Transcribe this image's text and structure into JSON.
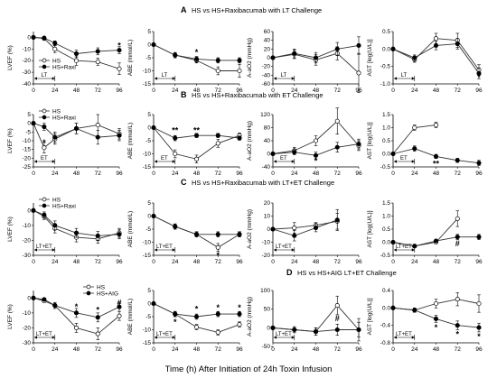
{
  "figure": {
    "xlabel": "Time (h) After Initiation of 24h Toxin Infusion",
    "x_ticks": [
      "0",
      "24",
      "48",
      "72",
      "96"
    ],
    "colors": {
      "hs": "#ffffff",
      "treat": "#000000",
      "line": "#333333"
    }
  },
  "panels": [
    {
      "letter": "A",
      "title": "HS vs HS+Raxibacumab with LT Challenge"
    },
    {
      "letter": "B",
      "title": "HS vs HS+Raxibacumab with ET Challenge"
    },
    {
      "letter": "C",
      "title": "HS vs HS+Raxibacumab with LT+ET Challenge"
    },
    {
      "letter": "D",
      "title": "HS vs HS+AIG LT+ET Challenge"
    }
  ],
  "chart_data": [
    {
      "type": "line",
      "row": 0,
      "col": 0,
      "ylabel": "LVEF (%)",
      "ylim": [
        -40,
        5
      ],
      "yticks": [
        0,
        -10,
        -20,
        -30,
        -40
      ],
      "x": [
        0,
        12,
        24,
        48,
        72,
        96
      ],
      "window": "LT",
      "legend": {
        "placement": "bottom-left",
        "hs": "HS",
        "treat": "HS+Raxi"
      },
      "series": [
        {
          "name": "HS",
          "kind": "hs",
          "values": [
            0,
            -1,
            -10,
            -20,
            -21,
            -27
          ],
          "err": [
            0,
            1,
            3,
            4,
            3,
            5
          ]
        },
        {
          "name": "HS+Raxi",
          "kind": "treat",
          "values": [
            0,
            -0.5,
            -5,
            -14,
            -12,
            -11
          ],
          "err": [
            0,
            1,
            2,
            3,
            3,
            3
          ]
        }
      ],
      "sig": [
        {
          "x": 96,
          "y": -7,
          "text": "*"
        }
      ]
    },
    {
      "type": "line",
      "row": 0,
      "col": 1,
      "ylabel": "ABE (mmol/L)",
      "ylim": [
        -15,
        5
      ],
      "yticks": [
        5,
        0,
        -5,
        -10,
        -15
      ],
      "x": [
        0,
        24,
        48,
        72,
        96
      ],
      "window": "LT",
      "series": [
        {
          "name": "HS",
          "kind": "hs",
          "values": [
            0,
            -4,
            -6,
            -10,
            -10
          ],
          "err": [
            0,
            1,
            1,
            1.5,
            2.5
          ]
        },
        {
          "name": "HS+Raxi",
          "kind": "treat",
          "values": [
            0,
            -4,
            -5.5,
            -6,
            -6
          ],
          "err": [
            0,
            1,
            1,
            1,
            1
          ]
        }
      ],
      "sig": [
        {
          "x": 48,
          "y": -3,
          "text": "*"
        }
      ]
    },
    {
      "type": "line",
      "row": 0,
      "col": 2,
      "ylabel": "A-aO2 (mmHg)",
      "ylim": [
        -60,
        60
      ],
      "yticks": [
        60,
        40,
        20,
        0,
        -20,
        -40,
        -60
      ],
      "x": [
        0,
        24,
        48,
        72,
        96
      ],
      "window": "LT",
      "series": [
        {
          "name": "HS",
          "kind": "hs",
          "values": [
            0,
            8,
            -5,
            10,
            -35
          ],
          "err": [
            0,
            10,
            12,
            15,
            45
          ]
        },
        {
          "name": "HS+Raxi",
          "kind": "treat",
          "values": [
            0,
            10,
            0,
            20,
            28
          ],
          "err": [
            0,
            10,
            12,
            15,
            20
          ]
        }
      ],
      "sig": []
    },
    {
      "type": "line",
      "row": 0,
      "col": 3,
      "ylabel": "AST [log(U/L)]",
      "ylim": [
        -1,
        0.5
      ],
      "yticks": [
        0.5,
        0,
        -0.5,
        -1
      ],
      "ytick_labels": [
        "0.5",
        "0.0",
        "-0.5",
        "-1.0"
      ],
      "x": [
        0,
        24,
        48,
        72,
        96
      ],
      "window": "LT",
      "series": [
        {
          "name": "HS",
          "kind": "hs",
          "values": [
            0,
            -0.3,
            0.3,
            0.25,
            -0.6
          ],
          "err": [
            0,
            0.08,
            0.15,
            0.2,
            0.15
          ]
        },
        {
          "name": "HS+Raxi",
          "kind": "treat",
          "values": [
            0,
            -0.25,
            0.1,
            0.15,
            -0.7
          ],
          "err": [
            0,
            0.08,
            0.12,
            0.15,
            0.15
          ]
        }
      ],
      "sig": [
        {
          "x": 96,
          "y": -0.8,
          "text": "*"
        }
      ]
    },
    {
      "type": "line",
      "row": 1,
      "col": 0,
      "ylabel": "LVEF (%)",
      "ylim": [
        -25,
        5
      ],
      "yticks": [
        5,
        0,
        -5,
        -10,
        -15,
        -20,
        -25
      ],
      "x": [
        0,
        12,
        24,
        48,
        72,
        96
      ],
      "window": "ET",
      "legend": {
        "placement": "top-left",
        "hs": "HS",
        "treat": "HS+Raxi"
      },
      "series": [
        {
          "name": "HS",
          "kind": "hs",
          "values": [
            0,
            -14,
            -9,
            -3,
            -1,
            -6
          ],
          "err": [
            0,
            3,
            3,
            3,
            6,
            3
          ]
        },
        {
          "name": "HS+Raxi",
          "kind": "treat",
          "values": [
            0,
            -2,
            -8,
            -3,
            -8,
            -7
          ],
          "err": [
            0,
            2,
            3,
            3,
            4,
            3
          ]
        }
      ],
      "sig": [
        {
          "x": 12,
          "y": -11,
          "text": "*"
        }
      ]
    },
    {
      "type": "line",
      "row": 1,
      "col": 1,
      "ylabel": "ABE (mmol/L)",
      "ylim": [
        -15,
        5
      ],
      "yticks": [
        5,
        0,
        -5,
        -10,
        -15
      ],
      "x": [
        0,
        24,
        48,
        72,
        96
      ],
      "window": "ET",
      "series": [
        {
          "name": "HS",
          "kind": "hs",
          "values": [
            0,
            -10,
            -12,
            -6,
            -3
          ],
          "err": [
            0,
            1.5,
            1.5,
            1.5,
            1
          ]
        },
        {
          "name": "HS+Raxi",
          "kind": "treat",
          "values": [
            0,
            -4,
            -3,
            -3,
            -4
          ],
          "err": [
            0,
            1,
            0.8,
            0.8,
            0.8
          ]
        }
      ],
      "sig": [
        {
          "x": 24,
          "y": -1,
          "text": "**"
        },
        {
          "x": 48,
          "y": -1,
          "text": "**"
        }
      ]
    },
    {
      "type": "line",
      "row": 1,
      "col": 2,
      "ylabel": "A-aO2 (mmHg)",
      "ylim": [
        -40,
        120
      ],
      "yticks": [
        120,
        80,
        40,
        0,
        -40
      ],
      "x": [
        0,
        24,
        48,
        72,
        96
      ],
      "window": "ET",
      "series": [
        {
          "name": "HS",
          "kind": "hs",
          "values": [
            0,
            10,
            40,
            100,
            25
          ],
          "err": [
            0,
            10,
            15,
            40,
            15
          ]
        },
        {
          "name": "HS+Raxi",
          "kind": "treat",
          "values": [
            0,
            5,
            -5,
            20,
            30
          ],
          "err": [
            0,
            8,
            10,
            15,
            15
          ]
        }
      ],
      "sig": [
        {
          "x": 48,
          "y": -22,
          "text": "*"
        }
      ]
    },
    {
      "type": "line",
      "row": 1,
      "col": 3,
      "ylabel": "AST [log(U/L)]",
      "ylim": [
        -0.5,
        1.5
      ],
      "yticks": [
        1.5,
        1,
        0.5,
        0,
        -0.5
      ],
      "ytick_labels": [
        "1.5",
        "1.0",
        "0.5",
        "0.0",
        "-0.5"
      ],
      "x": [
        0,
        24,
        48,
        72,
        96
      ],
      "window": "ET",
      "series": [
        {
          "name": "HS",
          "kind": "hs",
          "values": [
            0,
            1,
            1.1,
            null,
            null
          ],
          "err": [
            0,
            0.1,
            0.1,
            null,
            null
          ]
        },
        {
          "name": "HS+Raxi",
          "kind": "treat",
          "values": [
            0,
            0.2,
            -0.1,
            -0.25,
            -0.35
          ],
          "err": [
            0,
            0.1,
            0.08,
            0.08,
            0.1
          ]
        }
      ],
      "sig": [
        {
          "x": 48,
          "y": -0.38,
          "text": "**"
        }
      ]
    },
    {
      "type": "line",
      "row": 2,
      "col": 0,
      "ylabel": "LVEF (%)",
      "ylim": [
        -30,
        5
      ],
      "yticks": [
        0,
        -10,
        -20,
        -30
      ],
      "x": [
        0,
        12,
        24,
        48,
        72,
        96
      ],
      "window": "LT+ET",
      "legend": {
        "placement": "top-left",
        "hs": "HS",
        "treat": "HS+Raxi"
      },
      "series": [
        {
          "name": "HS",
          "kind": "hs",
          "values": [
            0,
            -4,
            -12,
            -18,
            -19,
            -15
          ],
          "err": [
            0,
            2,
            3,
            3,
            3,
            3
          ]
        },
        {
          "name": "HS+Raxi",
          "kind": "treat",
          "values": [
            0,
            -3,
            -10,
            -15,
            -17,
            -16
          ],
          "err": [
            0,
            2,
            3,
            3,
            3,
            3
          ]
        }
      ],
      "sig": []
    },
    {
      "type": "line",
      "row": 2,
      "col": 1,
      "ylabel": "ABE (mmol/L)",
      "ylim": [
        -15,
        5
      ],
      "yticks": [
        5,
        0,
        -5,
        -10,
        -15
      ],
      "x": [
        0,
        24,
        48,
        72,
        96
      ],
      "window": "LT+ET",
      "series": [
        {
          "name": "HS",
          "kind": "hs",
          "values": [
            0,
            -4,
            -7,
            -12,
            -7
          ],
          "err": [
            0,
            1,
            1,
            1.5,
            1
          ]
        },
        {
          "name": "HS+Raxi",
          "kind": "treat",
          "values": [
            0,
            -4,
            -7,
            -7,
            -7
          ],
          "err": [
            0,
            1,
            1,
            1,
            1
          ]
        }
      ],
      "sig": [
        {
          "x": 72,
          "y": -15,
          "text": "*"
        }
      ]
    },
    {
      "type": "line",
      "row": 2,
      "col": 2,
      "ylabel": "A-aO2 (mmHg)",
      "ylim": [
        -20,
        20
      ],
      "yticks": [
        20,
        10,
        0,
        -10,
        -20
      ],
      "x": [
        0,
        24,
        48,
        72,
        96
      ],
      "window": "LT+ET",
      "series": [
        {
          "name": "HS",
          "kind": "hs",
          "values": [
            0,
            1,
            3,
            6,
            null
          ],
          "err": [
            0,
            4,
            2,
            6,
            null
          ]
        },
        {
          "name": "HS+Raxi",
          "kind": "treat",
          "values": [
            0,
            -5,
            1,
            7,
            null
          ],
          "err": [
            0,
            4,
            3,
            8,
            null
          ]
        }
      ],
      "sig": []
    },
    {
      "type": "line",
      "row": 2,
      "col": 3,
      "ylabel": "AST [log(U/L)]",
      "ylim": [
        -0.5,
        1.5
      ],
      "yticks": [
        1.5,
        1,
        0.5,
        0,
        -0.5
      ],
      "ytick_labels": [
        "1.5",
        "1.0",
        "0.5",
        "0.0",
        "-0.5"
      ],
      "x": [
        0,
        24,
        48,
        72,
        96
      ],
      "window": "LT+ET",
      "series": [
        {
          "name": "HS",
          "kind": "hs",
          "values": [
            0,
            -0.15,
            0,
            0.9,
            null
          ],
          "err": [
            0,
            0.05,
            0.05,
            0.3,
            null
          ]
        },
        {
          "name": "HS+Raxi",
          "kind": "treat",
          "values": [
            0,
            -0.15,
            0.05,
            0.2,
            0.2
          ],
          "err": [
            0,
            0.05,
            0.05,
            0.1,
            0.1
          ]
        }
      ],
      "sig": [
        {
          "x": 72,
          "y": -0.05,
          "text": "#"
        }
      ]
    },
    {
      "type": "line",
      "row": 3,
      "col": 0,
      "ylabel": "LVEF (%)",
      "ylim": [
        -30,
        5
      ],
      "yticks": [
        0,
        -10,
        -20,
        -30
      ],
      "x": [
        0,
        12,
        24,
        48,
        72,
        96
      ],
      "window": "LT+ET",
      "legend": {
        "placement": "top-right",
        "hs": "HS",
        "treat": "HS+AIG"
      },
      "series": [
        {
          "name": "HS",
          "kind": "hs",
          "values": [
            0,
            -2,
            -5,
            -20,
            -24,
            -12
          ],
          "err": [
            0,
            1,
            2,
            3,
            4,
            3
          ]
        },
        {
          "name": "HS+AIG",
          "kind": "treat",
          "values": [
            0,
            -1,
            -5,
            -10,
            -13,
            -6
          ],
          "err": [
            0,
            1,
            2,
            3,
            3,
            3
          ]
        }
      ],
      "sig": [
        {
          "x": 48,
          "y": -6,
          "text": "*"
        },
        {
          "x": 72,
          "y": -8,
          "text": "*"
        },
        {
          "x": 96,
          "y": -3,
          "text": "#"
        }
      ]
    },
    {
      "type": "line",
      "row": 3,
      "col": 1,
      "ylabel": "ABE (mmol/L)",
      "ylim": [
        -15,
        5
      ],
      "yticks": [
        5,
        0,
        -5,
        -10,
        -15
      ],
      "x": [
        0,
        24,
        48,
        72,
        96
      ],
      "window": "LT+ET",
      "series": [
        {
          "name": "HS",
          "kind": "hs",
          "values": [
            0,
            -4,
            -9,
            -11,
            -8
          ],
          "err": [
            0,
            1,
            1,
            1,
            1
          ]
        },
        {
          "name": "HS+AIG",
          "kind": "treat",
          "values": [
            0,
            -4,
            -5,
            -4,
            -4
          ],
          "err": [
            0,
            1,
            1,
            1,
            1
          ]
        }
      ],
      "sig": [
        {
          "x": 24,
          "y": -7,
          "text": "*"
        },
        {
          "x": 48,
          "y": -2,
          "text": "*"
        },
        {
          "x": 72,
          "y": -1.5,
          "text": "*"
        },
        {
          "x": 96,
          "y": -1.5,
          "text": "*"
        }
      ]
    },
    {
      "type": "line",
      "row": 3,
      "col": 2,
      "ylabel": "A-aO2 (mmHg)",
      "ylim": [
        -40,
        100
      ],
      "yticks": [
        100,
        50,
        0,
        -50
      ],
      "x": [
        0,
        24,
        48,
        72,
        96
      ],
      "window": "LT+ET",
      "series": [
        {
          "name": "HS",
          "kind": "hs",
          "values": [
            0,
            -5,
            -10,
            60,
            -5
          ],
          "err": [
            0,
            8,
            10,
            25,
            30
          ]
        },
        {
          "name": "HS+AIG",
          "kind": "treat",
          "values": [
            0,
            -5,
            -10,
            -5,
            -5
          ],
          "err": [
            0,
            8,
            10,
            15,
            20
          ]
        }
      ],
      "sig": [
        {
          "x": 72,
          "y": 25,
          "text": "#"
        }
      ]
    },
    {
      "type": "line",
      "row": 3,
      "col": 3,
      "ylabel": "AST [log(U/L)]",
      "ylim": [
        -0.8,
        0.4
      ],
      "yticks": [
        0.4,
        0,
        -0.4,
        -0.8
      ],
      "ytick_labels": [
        "0.4",
        "0.0",
        "-0.4",
        "-0.8"
      ],
      "x": [
        0,
        24,
        48,
        72,
        96
      ],
      "window": "LT+ET",
      "series": [
        {
          "name": "HS",
          "kind": "hs",
          "values": [
            0,
            -0.05,
            0.1,
            0.2,
            0.1
          ],
          "err": [
            0,
            0.05,
            0.1,
            0.15,
            0.2
          ]
        },
        {
          "name": "HS+AIG",
          "kind": "treat",
          "values": [
            0,
            -0.05,
            -0.25,
            -0.4,
            -0.45
          ],
          "err": [
            0,
            0.05,
            0.08,
            0.1,
            0.1
          ]
        }
      ],
      "sig": [
        {
          "x": 48,
          "y": -0.45,
          "text": "*"
        },
        {
          "x": 72,
          "y": -0.6,
          "text": "*"
        },
        {
          "x": 96,
          "y": -0.65,
          "text": "*"
        }
      ]
    }
  ]
}
